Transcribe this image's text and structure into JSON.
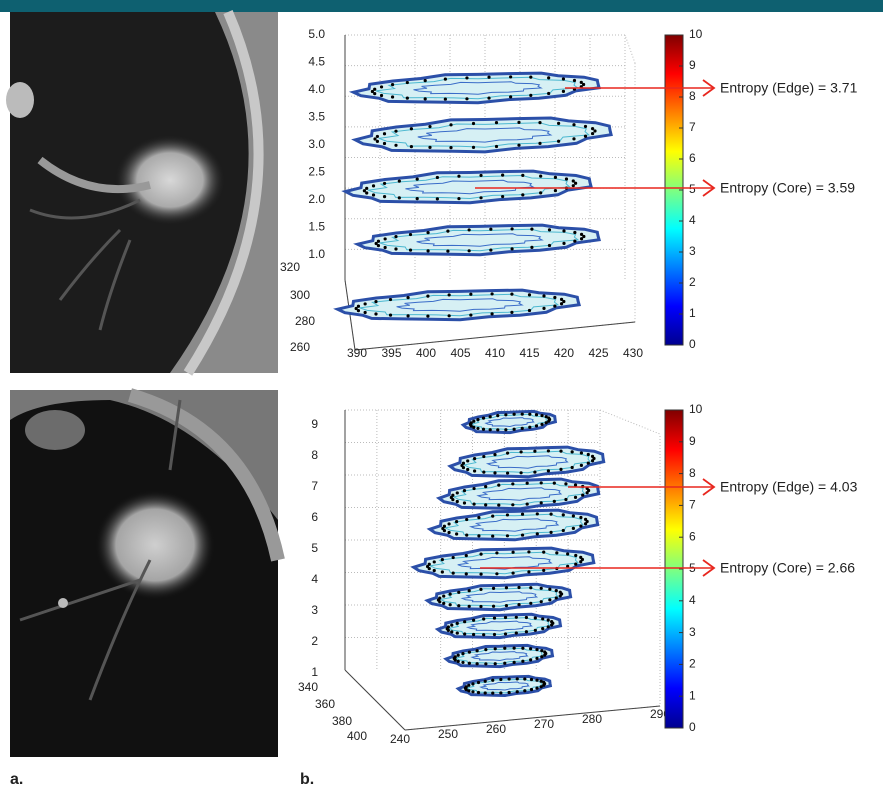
{
  "panel_labels": [
    "a.",
    "b."
  ],
  "plots": [
    {
      "z_ticks": [
        "5.0",
        "4.5",
        "4.0",
        "3.5",
        "3.0",
        "2.5",
        "2.0",
        "1.5",
        "1.0"
      ],
      "y_ticks": [
        "320",
        "300",
        "280",
        "260"
      ],
      "x_ticks": [
        "390",
        "395",
        "400",
        "405",
        "410",
        "415",
        "420",
        "425",
        "430"
      ],
      "colorbar_ticks": [
        10,
        9,
        8,
        7,
        6,
        5,
        4,
        3,
        2,
        1,
        0
      ],
      "annotations": [
        "Entropy (Edge) = 3.71",
        "Entropy (Core) = 3.59"
      ]
    },
    {
      "z_ticks": [
        "9",
        "8",
        "7",
        "6",
        "5",
        "4",
        "3",
        "2",
        "1"
      ],
      "y_ticks": [
        "340",
        "360",
        "380",
        "400"
      ],
      "x_ticks": [
        "240",
        "250",
        "260",
        "270",
        "280",
        "290"
      ],
      "colorbar_ticks": [
        10,
        9,
        8,
        7,
        6,
        5,
        4,
        3,
        2,
        1,
        0
      ],
      "annotations": [
        "Entropy (Edge) = 4.03",
        "Entropy (Core) = 2.66"
      ]
    }
  ]
}
